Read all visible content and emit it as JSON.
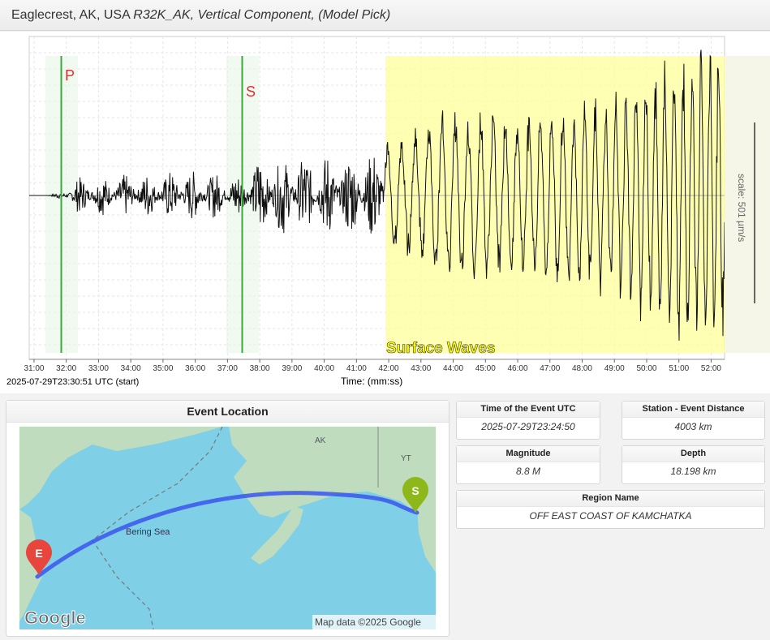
{
  "header": {
    "title_prefix": "Eaglecrest, AK, USA ",
    "station_code": "R32K_AK",
    "title_suffix": ", Vertical Component, (Model Pick)"
  },
  "seismogram": {
    "p_label": "P",
    "s_label": "S",
    "surface_label": "Surface Waves",
    "scale_label": "scale: 501 µm/s",
    "start_label": "2025-07-29T23:30:51 UTC (start)",
    "xlabel": "Time: (mm:ss)",
    "colors": {
      "p_line": "#3aa83a",
      "s_line": "#3aa83a",
      "surface": "#ffff99",
      "phase_text": "#e53030"
    }
  },
  "chart_data": {
    "type": "line",
    "xlabel": "Time: (mm:ss)",
    "x_range": [
      "30:51",
      "52:25"
    ],
    "ticks": [
      "31:00",
      "32:00",
      "33:00",
      "34:00",
      "35:00",
      "36:00",
      "37:00",
      "38:00",
      "39:00",
      "40:00",
      "41:00",
      "42:00",
      "43:00",
      "44:00",
      "45:00",
      "46:00",
      "47:00",
      "48:00",
      "49:00",
      "50:00",
      "51:00",
      "52:00"
    ],
    "phases": [
      {
        "name": "P",
        "time": "31:53"
      },
      {
        "name": "S",
        "time": "37:28"
      }
    ],
    "surface_wave_window": {
      "start": "42:00",
      "end": "52:25"
    },
    "series": [
      {
        "values": "envelope",
        "envelope": [
          [
            0,
            0
          ],
          [
            0.5,
            0
          ],
          [
            1.0,
            0.05
          ],
          [
            1.5,
            0.25
          ],
          [
            5,
            0.35
          ],
          [
            6.6,
            0.3
          ],
          [
            7.0,
            0.55
          ],
          [
            10.5,
            0.6
          ],
          [
            11.2,
            0.75
          ],
          [
            13,
            1.1
          ],
          [
            16,
            1.15
          ],
          [
            18,
            1.25
          ],
          [
            19.5,
            1.8
          ],
          [
            21,
            2.0
          ]
        ]
      }
    ]
  },
  "event": {
    "panel_title": "Event Location",
    "time_label": "Time of the Event UTC",
    "time_value": "2025-07-29T23:24:50",
    "distance_label": "Station - Event Distance",
    "distance_value": "4003 km",
    "magnitude_label": "Magnitude",
    "magnitude_value": "8.8 M",
    "depth_label": "Depth",
    "depth_value": "18.198 km",
    "region_label": "Region Name",
    "region_value": "OFF EAST COAST OF KAMCHATKA"
  },
  "map": {
    "sea_label": "Bering Sea",
    "label_ak": "AK",
    "label_yt": "YT",
    "event_marker": "E",
    "station_marker": "S",
    "logo": "Google",
    "attribution": "Map data ©2025 Google",
    "colors": {
      "water": "#7fd0e6",
      "land": "#bfdcbf",
      "path": "#3a55ee",
      "event": "#e8453c",
      "station": "#8db71a"
    }
  }
}
